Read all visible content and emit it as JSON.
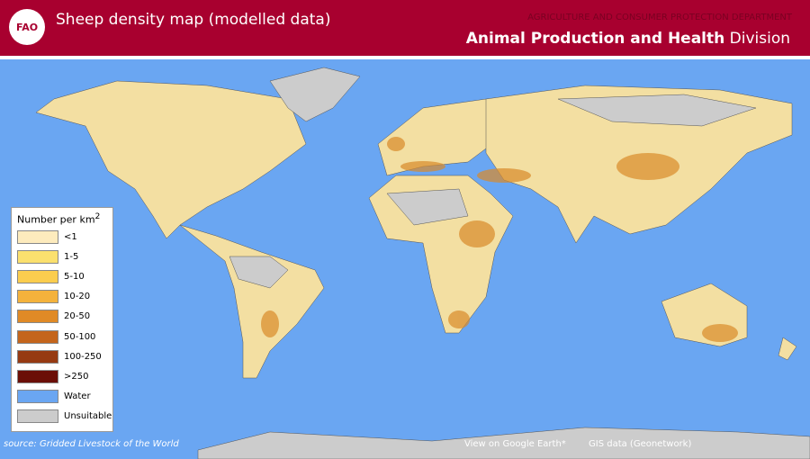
{
  "header": {
    "logo": "FAO",
    "title": "Sheep density map (modelled data)",
    "department": "AGRICULTURE AND CONSUMER PROTECTION DEPARTMENT",
    "division_bold": "Animal Production and Health",
    "division_light": "Division"
  },
  "legend": {
    "title": "Number per km",
    "title_sup": "2",
    "items": [
      {
        "label": "<1",
        "color": "#fdebbd"
      },
      {
        "label": "1-5",
        "color": "#fbe06e"
      },
      {
        "label": "5-10",
        "color": "#fbcd4e"
      },
      {
        "label": "10-20",
        "color": "#f4b23c"
      },
      {
        "label": "20-50",
        "color": "#e08a26"
      },
      {
        "label": "50-100",
        "color": "#c4651c"
      },
      {
        "label": "100-250",
        "color": "#963a12"
      },
      {
        "label": ">250",
        "color": "#6b0e06"
      },
      {
        "label": "Water",
        "color": "#6aa6f2"
      },
      {
        "label": "Unsuitable",
        "color": "#cccccc"
      }
    ]
  },
  "footer": {
    "source": "source: Gridded Livestock of the World",
    "links": [
      "View on Google Earth*",
      "GIS data (Geonetwork)"
    ]
  }
}
